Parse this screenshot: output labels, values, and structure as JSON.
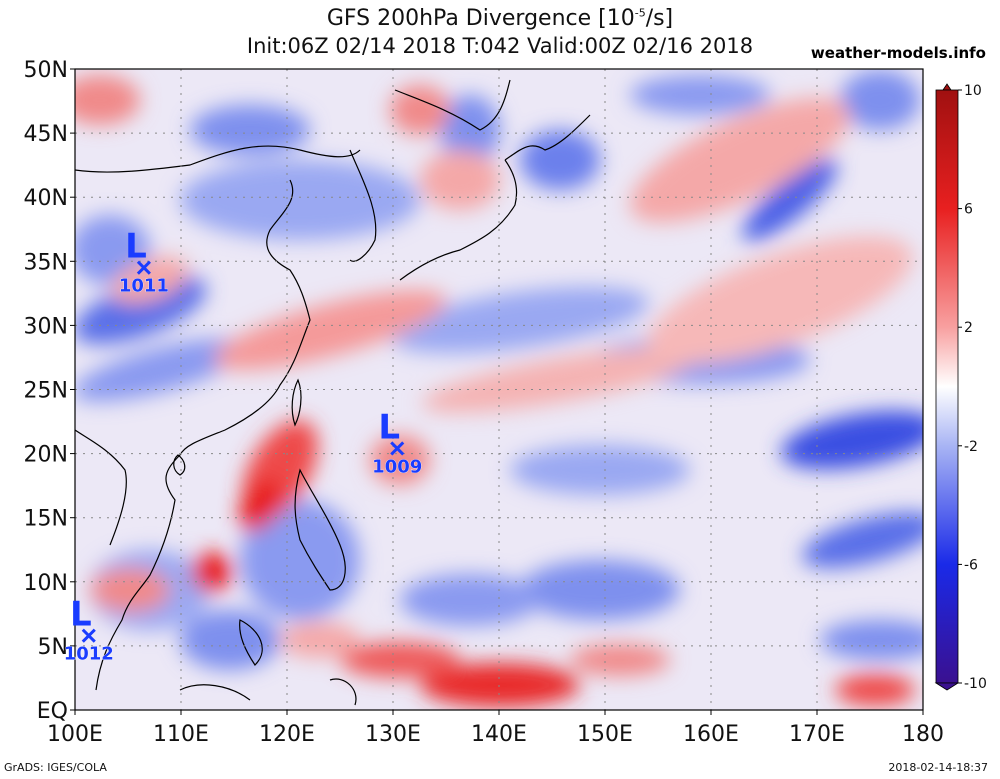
{
  "title": {
    "main": "GFS 200hPa Divergence [10",
    "exp": "-5",
    "unit": "/s]",
    "subtitle": "Init:06Z 02/14 2018 T:042 Valid:00Z 02/16 2018"
  },
  "site": "weather-models.info",
  "footer": {
    "left": "GrADS: IGES/COLA",
    "right": "2018-02-14-18:37"
  },
  "map": {
    "lat_labels": [
      "50N",
      "45N",
      "40N",
      "35N",
      "30N",
      "25N",
      "20N",
      "15N",
      "10N",
      "5N",
      "EQ"
    ],
    "lon_labels": [
      "100E",
      "110E",
      "120E",
      "130E",
      "140E",
      "150E",
      "160E",
      "170E",
      "180"
    ],
    "lat_range": [
      0,
      50
    ],
    "lon_range": [
      100,
      180
    ],
    "grid": "dotted"
  },
  "lows": [
    {
      "letter": "L",
      "pressure": "1011",
      "lon": 106.5,
      "lat": 34.5
    },
    {
      "letter": "L",
      "pressure": "1009",
      "lon": 130.4,
      "lat": 20.4
    },
    {
      "letter": "L",
      "pressure": "1012",
      "lon": 101.3,
      "lat": 5.8
    }
  ],
  "colorbar": {
    "labels": [
      "10",
      "6",
      "2",
      "-2",
      "-6",
      "-10"
    ],
    "colors": [
      "#b01010",
      "#e02020",
      "#f08080",
      "#f8c8c8",
      "#ffffff",
      "#c8d0f8",
      "#8898f0",
      "#2030e0",
      "#1010b0",
      "#2a1080"
    ]
  },
  "colors": {
    "low_marker": "#1a3cff",
    "coast": "#000000"
  }
}
